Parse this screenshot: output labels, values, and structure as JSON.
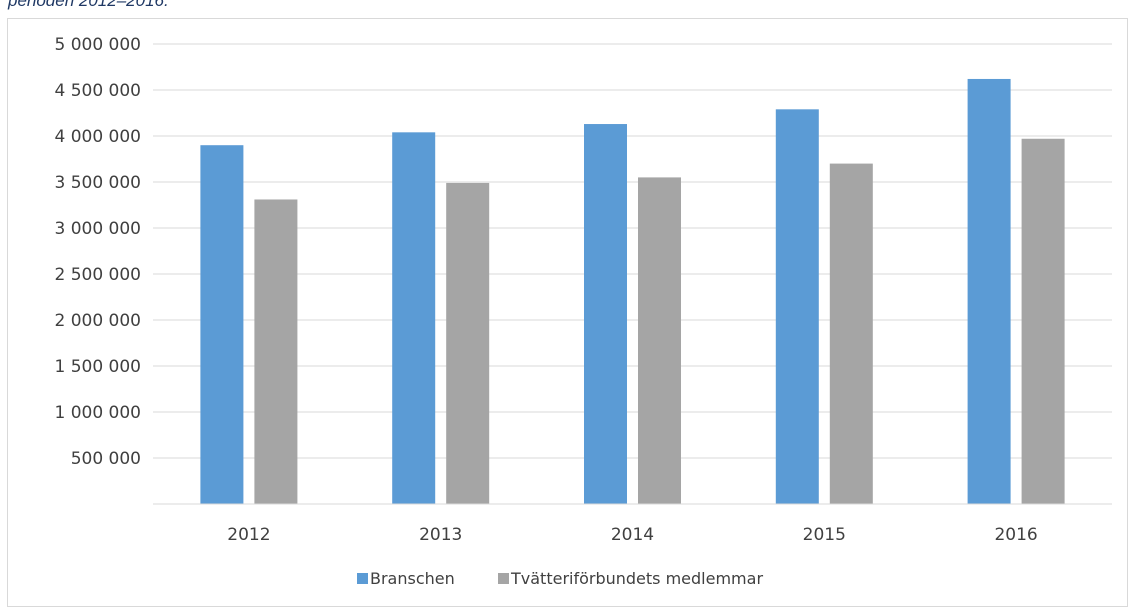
{
  "caption": "perioden 2012–2016.",
  "chart_data": {
    "type": "bar",
    "title": "",
    "xlabel": "",
    "ylabel": "",
    "categories": [
      "2012",
      "2013",
      "2014",
      "2015",
      "2016"
    ],
    "ylim": [
      0,
      5000000
    ],
    "ytick_labels": [
      "500 000",
      "1 000 000",
      "1 500 000",
      "2 000 000",
      "2 500 000",
      "3 000 000",
      "3 500 000",
      "4 000 000",
      "4 500 000",
      "5 000 000"
    ],
    "ytick_values": [
      500000,
      1000000,
      1500000,
      2000000,
      2500000,
      3000000,
      3500000,
      4000000,
      4500000,
      5000000
    ],
    "grid": true,
    "legend_position": "bottom",
    "series": [
      {
        "name": "Branschen",
        "color": "#5b9bd5",
        "values": [
          3900000,
          4040000,
          4130000,
          4290000,
          4620000
        ]
      },
      {
        "name": "Tvätteriförbundets medlemmar",
        "color": "#a5a5a5",
        "values": [
          3310000,
          3490000,
          3550000,
          3700000,
          3970000
        ]
      }
    ]
  }
}
